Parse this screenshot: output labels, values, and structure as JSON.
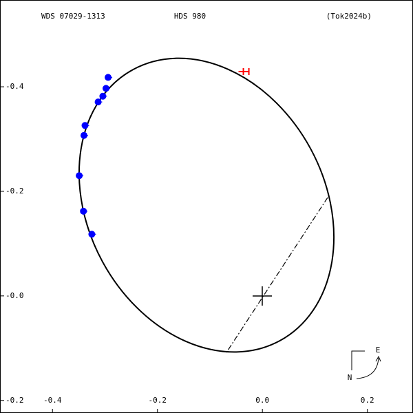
{
  "chart_data": {
    "type": "scatter",
    "header": {
      "left": "WDS 07029-1313",
      "center": "HDS 980",
      "right": "(Tok2024b)"
    },
    "compass": {
      "east": "E",
      "north": "N"
    },
    "xlim": [
      -0.5,
      0.287
    ],
    "ylim": [
      -0.224,
      0.566
    ],
    "xticks": [
      -0.4,
      -0.2,
      {
        "value": 0,
        "label": "0.0"
      },
      0.2
    ],
    "yticks": [
      {
        "value": 0.4,
        "label": "-0.4"
      },
      {
        "value": 0.2,
        "label": "-0.2"
      },
      {
        "value": 0,
        "label": "-0.0"
      },
      {
        "value": -0.2,
        "label": "-0.2"
      }
    ],
    "series": [
      {
        "color": "#0000ff",
        "marker": "circle",
        "x": [
          -0.294,
          -0.298,
          -0.304,
          -0.313,
          -0.338,
          -0.34,
          -0.349,
          -0.341,
          -0.325
        ],
        "y": [
          0.418,
          0.397,
          0.382,
          0.371,
          0.326,
          0.307,
          0.23,
          0.162,
          0.118
        ]
      },
      {
        "color": "#ff0000",
        "marker": "H",
        "x": [
          -0.031
        ],
        "y": [
          0.429
        ]
      }
    ]
  }
}
